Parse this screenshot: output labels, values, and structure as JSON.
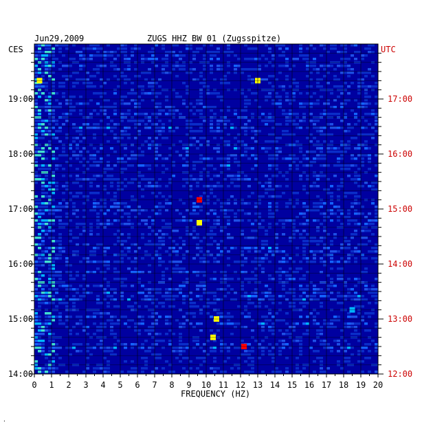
{
  "header": {
    "date": "Jun29,2009",
    "station": "ZUGS HHZ BW 01 (Zugsspitze)"
  },
  "axes": {
    "left_timezone": "CES",
    "right_timezone": "UTC",
    "xlabel": "FREQUENCY (HZ)"
  },
  "corner_mark": "·",
  "colors": {
    "background": "#0000a0",
    "low": "#0a2dc8",
    "mid": "#00b4ff",
    "high": "#ffff00",
    "peak": "#ff0000",
    "right_axis": "#cc0000"
  },
  "chart_data": {
    "type": "heatmap",
    "x": [
      0,
      1,
      2,
      3,
      4,
      5,
      6,
      7,
      8,
      9,
      10,
      11,
      12,
      13,
      14,
      15,
      16,
      17,
      18,
      19,
      20
    ],
    "x_tick_labels": [
      "0",
      "1",
      "2",
      "3",
      "4",
      "5",
      "6",
      "7",
      "8",
      "9",
      "10",
      "11",
      "12",
      "13",
      "14",
      "15",
      "16",
      "17",
      "18",
      "19",
      "20"
    ],
    "xlim": [
      0,
      20
    ],
    "xlabel": "FREQUENCY (HZ)",
    "y_left_ticks": [
      "14:00",
      "15:00",
      "16:00",
      "17:00",
      "18:00",
      "19:00"
    ],
    "y_right_ticks": [
      "12:00",
      "13:00",
      "14:00",
      "15:00",
      "16:00",
      "17:00"
    ],
    "y_left_label": "CES",
    "y_right_label": "UTC",
    "time_range_local": [
      "14:00",
      "19:55"
    ],
    "grid": true,
    "hot_spots": [
      {
        "freq": 9.6,
        "time": "17:10",
        "intensity": "peak"
      },
      {
        "freq": 10.4,
        "time": "14:40",
        "intensity": "high"
      },
      {
        "freq": 10.6,
        "time": "15:00",
        "intensity": "high"
      },
      {
        "freq": 12.2,
        "time": "14:30",
        "intensity": "peak"
      },
      {
        "freq": 13.0,
        "time": "19:20",
        "intensity": "high"
      },
      {
        "freq": 0.3,
        "time": "19:20",
        "intensity": "high"
      },
      {
        "freq": 9.6,
        "time": "16:45",
        "intensity": "high"
      },
      {
        "freq": 18.5,
        "time": "15:10",
        "intensity": "mid"
      }
    ]
  }
}
